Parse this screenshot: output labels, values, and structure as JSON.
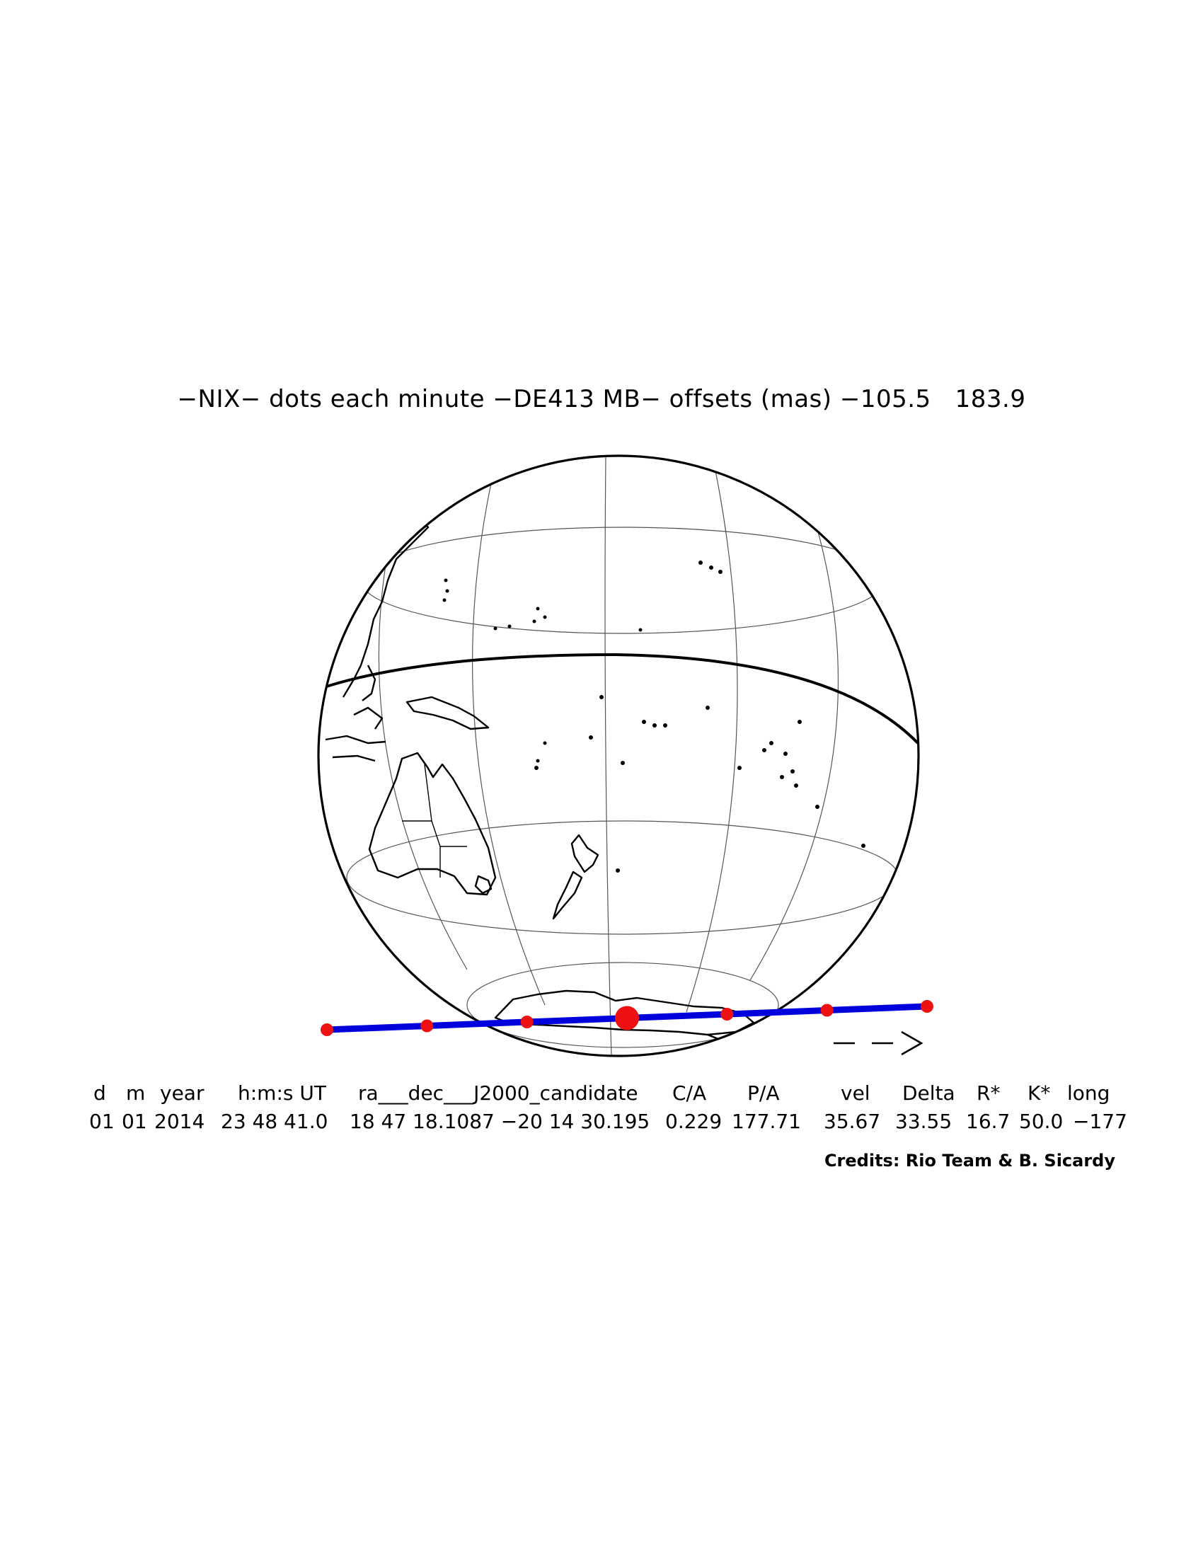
{
  "title": "−NIX− dots each minute −DE413 MB− offsets (mas) −105.5   183.9",
  "arrow_label": "−−>",
  "table": {
    "headers": [
      "d",
      "m",
      "year",
      "h:m:s UT",
      "ra___dec___J2000_candidate",
      "C/A",
      "P/A",
      "vel",
      "Delta",
      "R*",
      "K*",
      "long"
    ],
    "values": [
      "01",
      "01",
      "2014",
      "23 48 41.0",
      "18 47 18.1087 −20 14 30.195",
      "0.229",
      "177.71",
      "35.67",
      "33.55",
      "16.7",
      "50.0",
      "−177"
    ]
  },
  "credits": "Credits: Rio Team & B. Sicardy",
  "colors": {
    "track": "#0000dd",
    "dots": "#ee1111",
    "outline": "#000000",
    "grid": "#555555"
  },
  "track": {
    "dot_interval": "1 minute",
    "dot_count": 7,
    "central_dot_index": 3
  }
}
